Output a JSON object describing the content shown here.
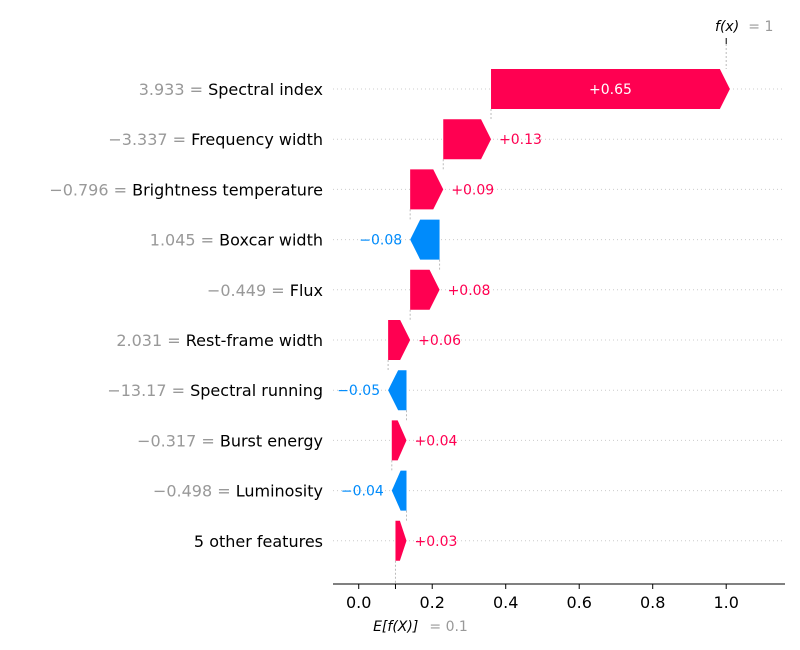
{
  "chart_data": {
    "type": "waterfall",
    "base_value": 0.1,
    "output_value": 1,
    "fx_label": "f(x)",
    "fx_value_text": "= 1",
    "ex_label": "E[f(X)]",
    "ex_value_text": "= 0.1",
    "xlim": [
      -0.07,
      1.16
    ],
    "xticks": [
      0.0,
      0.2,
      0.4,
      0.6,
      0.8,
      1.0
    ],
    "xtick_labels": [
      "0.0",
      "0.2",
      "0.4",
      "0.6",
      "0.8",
      "1.0"
    ],
    "features": [
      {
        "value": "3.933 =",
        "name": "Spectral index",
        "contribution": 0.65,
        "label": "+0.65",
        "label_inside": true
      },
      {
        "value": "−3.337 =",
        "name": "Frequency width",
        "contribution": 0.13,
        "label": "+0.13"
      },
      {
        "value": "−0.796 =",
        "name": "Brightness temperature",
        "contribution": 0.09,
        "label": "+0.09"
      },
      {
        "value": "1.045 =",
        "name": "Boxcar width",
        "contribution": -0.08,
        "label": "−0.08"
      },
      {
        "value": "−0.449 =",
        "name": "Flux",
        "contribution": 0.08,
        "label": "+0.08"
      },
      {
        "value": "2.031 =",
        "name": "Rest-frame width",
        "contribution": 0.06,
        "label": "+0.06"
      },
      {
        "value": "−13.17 =",
        "name": "Spectral running",
        "contribution": -0.05,
        "label": "−0.05"
      },
      {
        "value": "−0.317 =",
        "name": "Burst energy",
        "contribution": 0.04,
        "label": "+0.04"
      },
      {
        "value": "−0.498 =",
        "name": "Luminosity",
        "contribution": -0.04,
        "label": "−0.04"
      },
      {
        "value": "",
        "name": "5 other features",
        "contribution": 0.03,
        "label": "+0.03"
      }
    ],
    "colors": {
      "positive": "#ff0051",
      "negative": "#008bfb",
      "inside_label": "#ffffff",
      "feature_value": "#999999",
      "axis": "#000000",
      "grid": "#cccccc",
      "connector": "#bbbbbb"
    }
  }
}
